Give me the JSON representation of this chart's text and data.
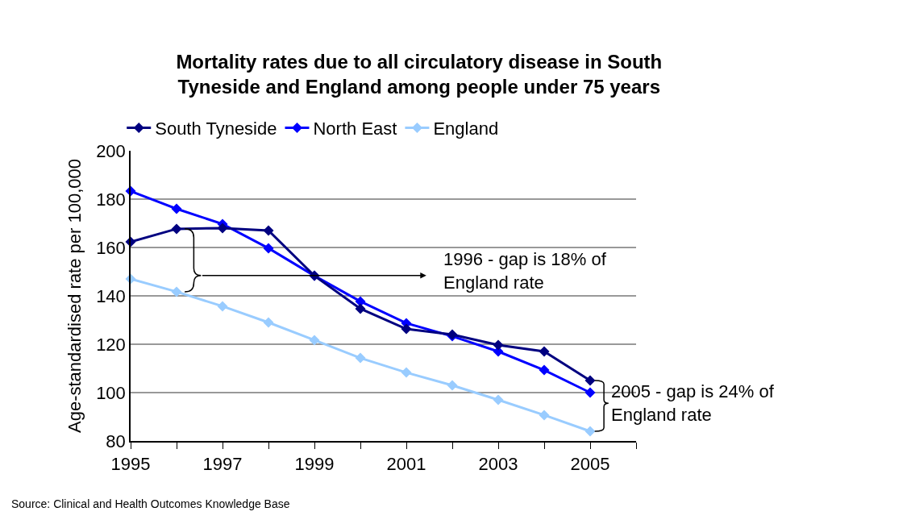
{
  "chart_data": {
    "type": "line",
    "title": "Mortality rates due to all circulatory disease in South Tyneside and England among people under 75 years",
    "ylabel": "Age-standardised rate per 100,000",
    "x": [
      1995,
      1996,
      1997,
      1998,
      1999,
      2000,
      2001,
      2002,
      2003,
      2004,
      2005
    ],
    "series": [
      {
        "name": "South Tyneside",
        "color": "#000080",
        "values": [
          162.3,
          167.7,
          168,
          167,
          148.3,
          134.7,
          126.3,
          124,
          119.7,
          117,
          105
        ]
      },
      {
        "name": "North East",
        "color": "#0000ff",
        "values": [
          183.3,
          176,
          169.7,
          159.7,
          148.3,
          137.7,
          128.7,
          123.3,
          117,
          109.3,
          100
        ]
      },
      {
        "name": "England",
        "color": "#99ccff",
        "values": [
          147,
          141.7,
          135.7,
          129,
          121.7,
          114.3,
          108.3,
          103,
          97,
          90.7,
          84
        ]
      }
    ],
    "xlim": [
      1995,
      2006
    ],
    "xticks": [
      1995,
      {
        "value": 1996,
        "label": null
      },
      1997,
      {
        "value": 1998,
        "label": null
      },
      1999,
      {
        "value": 2000,
        "label": null
      },
      2001,
      {
        "value": 2002,
        "label": null
      },
      2003,
      {
        "value": 2004,
        "label": null
      },
      2005,
      {
        "value": 2006,
        "label": null
      }
    ],
    "ylim": [
      80,
      200
    ],
    "yticks": [
      80,
      100,
      120,
      140,
      160,
      180,
      200
    ],
    "grid": "y",
    "legend": "top",
    "marker": "diamond",
    "line_style": "solid",
    "annotations": [
      "1996 - gap is 18% of England rate",
      {
        "text": "2005 - gap is 24% of England rate",
        "x": 2005,
        "y": 105
      },
      "Source: Clinical and Health Outcomes Knowledge Base"
    ]
  }
}
